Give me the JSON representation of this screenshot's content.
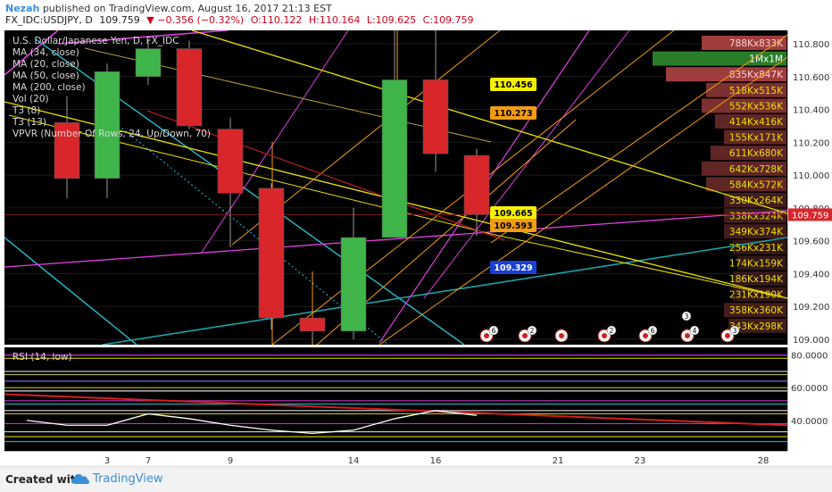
{
  "header": {
    "username": "Nezah",
    "published_text": "published on TradingView.com, August 16, 2017 21:13 EST",
    "symbol": "FX_IDC:USDJPY, D",
    "last_price": "109.759",
    "change": "▼ −0.356 (−0.32%)",
    "open": "O:110.122",
    "high": "H:110.164",
    "low": "L:109.625",
    "close": "C:109.759"
  },
  "legend": {
    "title": "U.S. Dollar/Japanese Yen, D, FX_IDC",
    "indicators": [
      "MA (34, close)",
      "MA (20, close)",
      "MA (50, close)",
      "MA (200, close)",
      "Vol (20)",
      "T3 (8)",
      "T3 (13)",
      "VPVR (Number Of Rows, 24, Up/Down, 70)"
    ]
  },
  "rsi": {
    "title": "RSI (14, low)"
  },
  "footer": {
    "created_with": "Created with",
    "brand": "TradingView"
  },
  "colors": {
    "up": "#3fb549",
    "down": "#d9262b",
    "yellow": "#e8e000",
    "magenta": "#e040e0",
    "orange": "#f39c12",
    "cyan": "#25c7d9"
  },
  "chart_data": {
    "type": "candlestick",
    "title": "U.S. Dollar/Japanese Yen, D, FX_IDC",
    "x_ticks": [
      "3",
      "7",
      "9",
      "14",
      "16",
      "21",
      "23",
      "28"
    ],
    "y_ticks": [
      "110.800",
      "110.600",
      "110.400",
      "110.200",
      "110.000",
      "109.800",
      "109.600",
      "109.400",
      "109.200",
      "109.000"
    ],
    "ylim": [
      108.98,
      110.91
    ],
    "candles": [
      {
        "day": "2",
        "open": 110.32,
        "close": 109.98,
        "high": 110.48,
        "low": 109.86
      },
      {
        "day": "3",
        "open": 109.98,
        "close": 110.63,
        "high": 110.68,
        "low": 109.86
      },
      {
        "day": "7",
        "open": 110.6,
        "close": 110.77,
        "high": 110.82,
        "low": 110.55
      },
      {
        "day": "8",
        "open": 110.77,
        "close": 110.3,
        "high": 110.82,
        "low": 110.28
      },
      {
        "day": "9",
        "open": 110.28,
        "close": 109.89,
        "high": 110.35,
        "low": 109.56
      },
      {
        "day": "10",
        "open": 109.92,
        "close": 109.13,
        "high": 109.95,
        "low": 109.06
      },
      {
        "day": "11",
        "open": 109.13,
        "close": 109.05,
        "high": 109.13,
        "low": 109.0
      },
      {
        "day": "14",
        "open": 109.05,
        "close": 109.62,
        "high": 109.8,
        "low": 109.0
      },
      {
        "day": "15",
        "open": 109.62,
        "close": 110.58,
        "high": 110.92,
        "low": 109.62
      },
      {
        "day": "16",
        "open": 110.58,
        "close": 110.13,
        "high": 110.92,
        "low": 110.02
      },
      {
        "day": "17",
        "open": 110.12,
        "close": 109.76,
        "high": 110.16,
        "low": 109.63
      }
    ],
    "current_price": "109.759",
    "price_labels": [
      "110.456",
      "110.273",
      "109.665",
      "109.593",
      "109.329"
    ],
    "volume_profile": [
      "788Kx833K",
      "1Mx1M",
      "835Kx847K",
      "518Kx515K",
      "552Kx536K",
      "414Kx416K",
      "155Kx171K",
      "611Kx680K",
      "642Kx728K",
      "584Kx572K",
      "330Kx264K",
      "338Kx324K",
      "349Kx374K",
      "256Kx231K",
      "174Kx159K",
      "186Kx194K",
      "231Kx190K",
      "358Kx360K",
      "343Kx298K"
    ],
    "rsi_ticks": [
      "80.0000",
      "60.0000",
      "40.0000"
    ],
    "rsi_ylim": [
      24,
      82
    ],
    "rsi_series": [
      40,
      37,
      37,
      44,
      41,
      37,
      34,
      32,
      34,
      41,
      46,
      43
    ]
  }
}
